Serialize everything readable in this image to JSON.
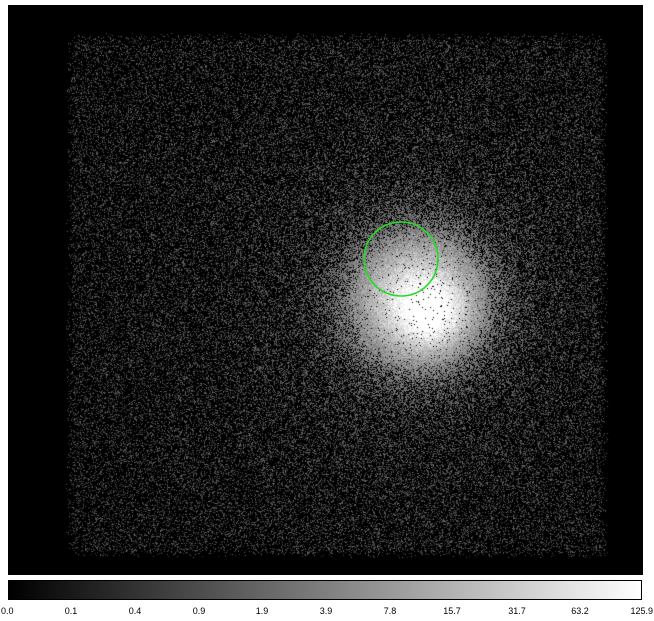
{
  "viewer": {
    "background_color": "#000000",
    "colormap": "grey",
    "scale": "log"
  },
  "region": {
    "shape": "circle",
    "color": "#22dd22"
  },
  "colorbar": {
    "ticks": [
      "0.0",
      "0.1",
      "0.4",
      "0.9",
      "1.9",
      "3.9",
      "7.8",
      "15.7",
      "31.7",
      "63.2",
      "125.9"
    ]
  }
}
